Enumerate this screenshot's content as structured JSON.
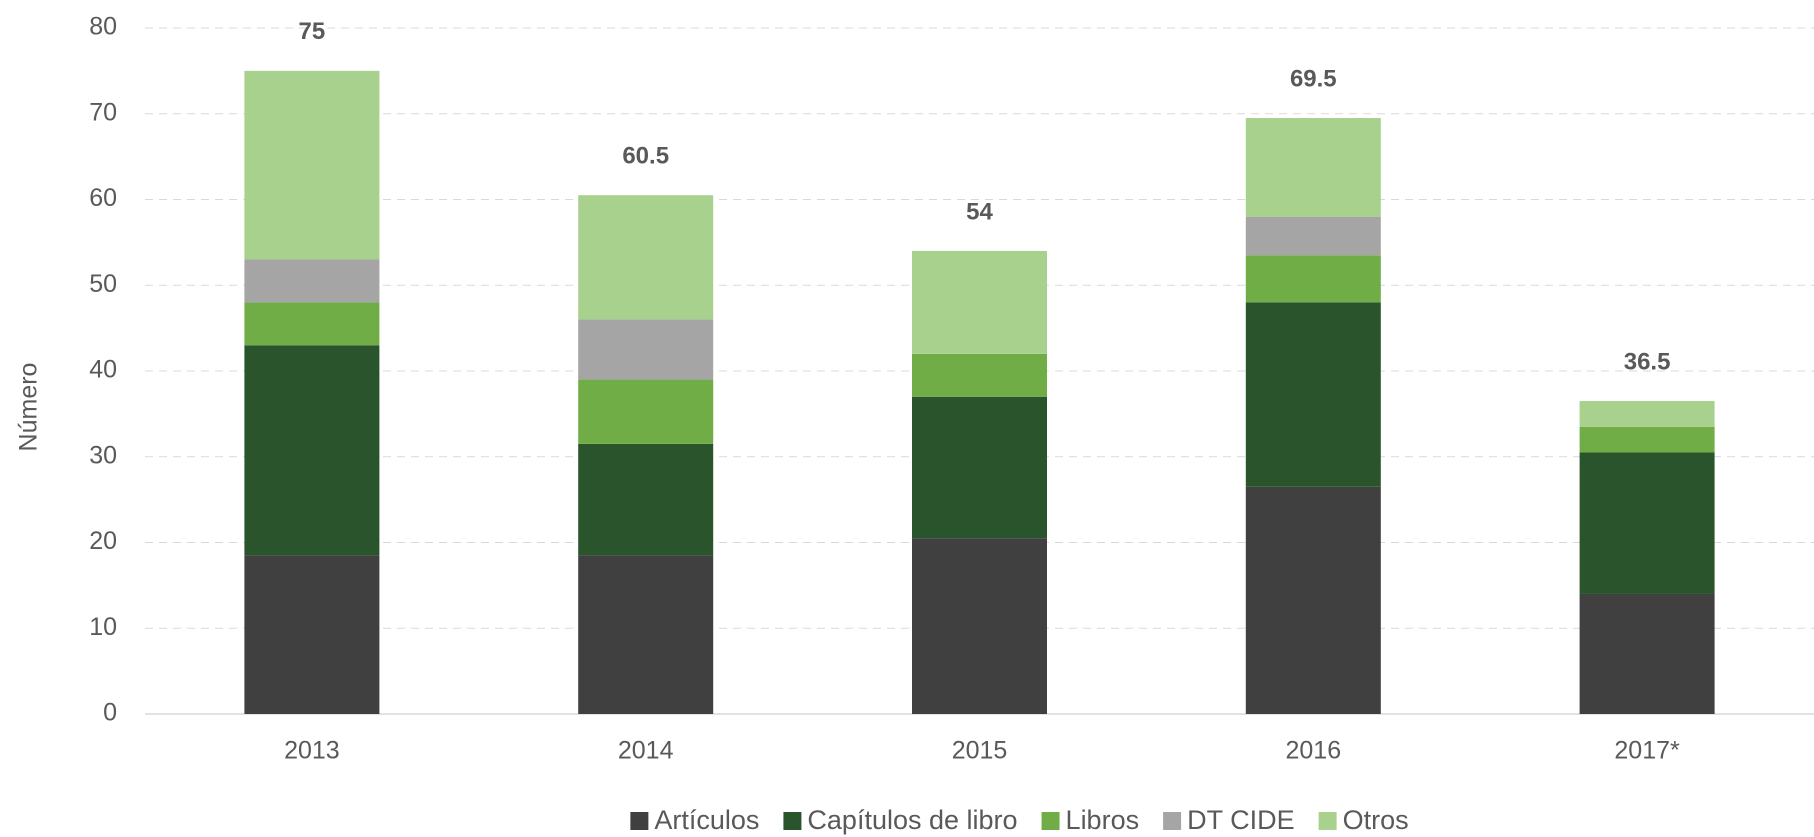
{
  "chart_data": {
    "type": "stacked_bar",
    "y_label": "Número",
    "categories": [
      "2013",
      "2014",
      "2015",
      "2016",
      "2017*"
    ],
    "series": [
      {
        "name": "Artículos",
        "color": "#404040",
        "values": [
          18.5,
          18.5,
          20.5,
          26.5,
          14
        ]
      },
      {
        "name": "Capítulos de libro",
        "color": "#2a542c",
        "values": [
          24.5,
          13,
          16.5,
          21.5,
          16.5
        ]
      },
      {
        "name": "Libros",
        "color": "#70ad47",
        "values": [
          5,
          7.5,
          5,
          5.5,
          3
        ]
      },
      {
        "name": "DT CIDE",
        "color": "#a5a5a5",
        "values": [
          5,
          7,
          0,
          4.5,
          0
        ]
      },
      {
        "name": "Otros",
        "color": "#a9d18e",
        "values": [
          22,
          14.5,
          12,
          11.5,
          3
        ]
      }
    ],
    "totals": [
      75,
      60.5,
      54,
      69.5,
      36.5
    ],
    "ylim": [
      0,
      80
    ],
    "yticks": [
      0,
      10,
      20,
      30,
      40,
      50,
      60,
      70,
      80
    ],
    "grid": true,
    "legend": "bottom"
  }
}
